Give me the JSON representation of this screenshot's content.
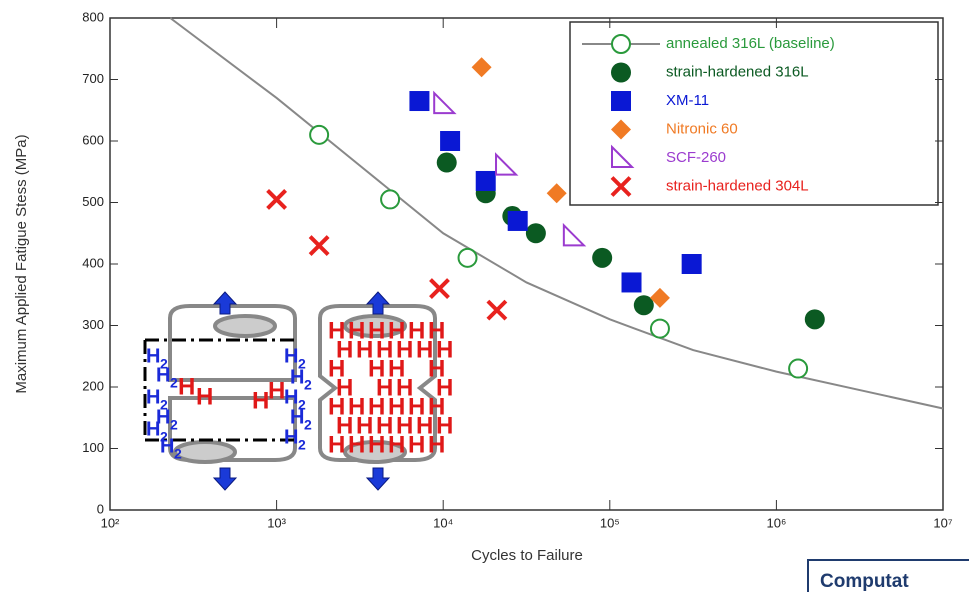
{
  "chart_data": {
    "type": "scatter",
    "xscale": "log",
    "x_label": "Cycles to Failure",
    "y_label": "Maximum Applied Fatigue Stess (MPa)",
    "xlim": [
      100,
      10000000
    ],
    "ylim": [
      0,
      800
    ],
    "xticks": [
      {
        "value": 100,
        "label": "10²"
      },
      {
        "value": 1000,
        "label": "10³"
      },
      {
        "value": 10000,
        "label": "10⁴"
      },
      {
        "value": 100000,
        "label": "10⁵"
      },
      {
        "value": 1000000,
        "label": "10⁶"
      },
      {
        "value": 10000000,
        "label": "10⁷"
      }
    ],
    "yticks": [
      0,
      100,
      200,
      300,
      400,
      500,
      600,
      700,
      800
    ],
    "legend": "upper right",
    "series": [
      {
        "name": "annealed 316L (baseline)",
        "color": "#2a9a3c",
        "marker": "open-circle",
        "x": [
          1800,
          4800,
          14000,
          200000,
          1350000
        ],
        "values": [
          610,
          505,
          410,
          295,
          230
        ],
        "curve": {
          "x": [
            230,
            1000,
            3162,
            10000,
            31623,
            100000,
            316228,
            1000000,
            3162278,
            10000000
          ],
          "values": [
            800,
            670,
            560,
            450,
            370,
            310,
            260,
            225,
            195,
            165
          ]
        }
      },
      {
        "name": "strain-hardened 316L",
        "color": "#0b5a22",
        "marker": "circle",
        "x": [
          10500,
          18000,
          26000,
          36000,
          90000,
          160000,
          1700000
        ],
        "values": [
          565,
          515,
          478,
          450,
          410,
          333,
          310
        ]
      },
      {
        "name": "XM-11",
        "color": "#0a18d4",
        "marker": "square",
        "x": [
          7200,
          11000,
          18000,
          28000,
          135000,
          310000
        ],
        "values": [
          665,
          600,
          535,
          470,
          370,
          400
        ]
      },
      {
        "name": "Nitronic 60",
        "color": "#f07a24",
        "marker": "diamond",
        "x": [
          17000,
          48000,
          200000
        ],
        "values": [
          720,
          515,
          345
        ]
      },
      {
        "name": "SCF-260",
        "color": "#9b3bcf",
        "marker": "triangle",
        "x": [
          10000,
          23500,
          60000
        ],
        "values": [
          660,
          560,
          445
        ]
      },
      {
        "name": "strain-hardened 304L",
        "color": "#e8221e",
        "marker": "x",
        "x": [
          1000,
          1800,
          9500,
          21000
        ],
        "values": [
          505,
          430,
          360,
          325
        ]
      }
    ]
  },
  "inset": {
    "h2": "H",
    "sub": "2",
    "h": "H"
  },
  "footer_box": "Computat"
}
